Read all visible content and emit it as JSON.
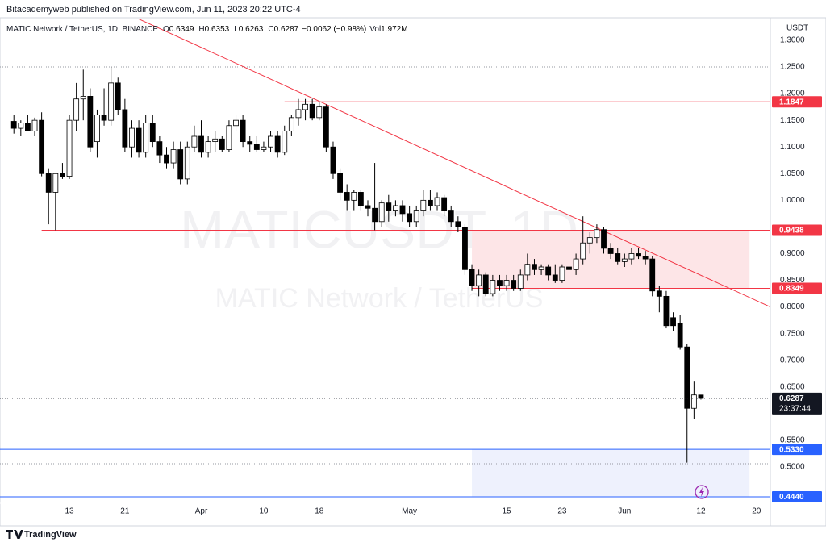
{
  "header": "Bitacademyweb published on TradingView.com, Jun 11, 2023 20:22 UTC-4",
  "footer": "TradingView",
  "chart_data": {
    "type": "candlestick",
    "title": "MATIC Network / TetherUS, 1D, BINANCE",
    "watermark": [
      "MATICUSDT, 1D",
      "MATIC Network / TetherUS"
    ],
    "legend_labels": [
      "O",
      "H",
      "L",
      "C"
    ],
    "change": "−0.0062 (−0.98%)",
    "volume_label": "Vol",
    "volume": "1.972M",
    "y_unit": "USDT",
    "x": [
      "2023-03-05",
      "2023-03-06",
      "2023-03-07",
      "2023-03-08",
      "2023-03-09",
      "2023-03-10",
      "2023-03-11",
      "2023-03-12",
      "2023-03-13",
      "2023-03-14",
      "2023-03-15",
      "2023-03-16",
      "2023-03-17",
      "2023-03-18",
      "2023-03-19",
      "2023-03-20",
      "2023-03-21",
      "2023-03-22",
      "2023-03-23",
      "2023-03-24",
      "2023-03-25",
      "2023-03-26",
      "2023-03-27",
      "2023-03-28",
      "2023-03-29",
      "2023-03-30",
      "2023-03-31",
      "2023-04-01",
      "2023-04-02",
      "2023-04-03",
      "2023-04-04",
      "2023-04-05",
      "2023-04-06",
      "2023-04-07",
      "2023-04-08",
      "2023-04-09",
      "2023-04-10",
      "2023-04-11",
      "2023-04-12",
      "2023-04-13",
      "2023-04-14",
      "2023-04-15",
      "2023-04-16",
      "2023-04-17",
      "2023-04-18",
      "2023-04-19",
      "2023-04-20",
      "2023-04-21",
      "2023-04-22",
      "2023-04-23",
      "2023-04-24",
      "2023-04-25",
      "2023-04-26",
      "2023-04-27",
      "2023-04-28",
      "2023-04-29",
      "2023-04-30",
      "2023-05-01",
      "2023-05-02",
      "2023-05-03",
      "2023-05-04",
      "2023-05-05",
      "2023-05-06",
      "2023-05-07",
      "2023-05-08",
      "2023-05-09",
      "2023-05-10",
      "2023-05-11",
      "2023-05-12",
      "2023-05-13",
      "2023-05-14",
      "2023-05-15",
      "2023-05-16",
      "2023-05-17",
      "2023-05-18",
      "2023-05-19",
      "2023-05-20",
      "2023-05-21",
      "2023-05-22",
      "2023-05-23",
      "2023-05-24",
      "2023-05-25",
      "2023-05-26",
      "2023-05-27",
      "2023-05-28",
      "2023-05-29",
      "2023-05-30",
      "2023-05-31",
      "2023-06-01",
      "2023-06-02",
      "2023-06-03",
      "2023-06-04",
      "2023-06-05",
      "2023-06-06",
      "2023-06-07",
      "2023-06-08",
      "2023-06-09",
      "2023-06-10",
      "2023-06-11",
      "2023-06-12"
    ],
    "open": [
      1.148,
      1.135,
      1.145,
      1.13,
      1.15,
      1.05,
      1.015,
      1.05,
      1.045,
      1.15,
      1.19,
      1.195,
      1.11,
      1.16,
      1.15,
      1.22,
      1.17,
      1.1,
      1.135,
      1.09,
      1.145,
      1.11,
      1.085,
      1.07,
      1.095,
      1.04,
      1.1,
      1.12,
      1.09,
      1.11,
      1.115,
      1.095,
      1.14,
      1.15,
      1.11,
      1.105,
      1.095,
      1.1,
      1.12,
      1.09,
      1.13,
      1.155,
      1.17,
      1.18,
      1.155,
      1.175,
      1.1,
      1.05,
      1.015,
      1.0,
      1.015,
      0.99,
      0.985,
      0.96,
      0.995,
      0.98,
      0.99,
      0.975,
      0.96,
      0.98,
      1.0,
      0.99,
      1.005,
      0.98,
      0.96,
      0.95,
      0.87,
      0.84,
      0.86,
      0.825,
      0.85,
      0.84,
      0.85,
      0.835,
      0.86,
      0.88,
      0.87,
      0.875,
      0.86,
      0.85,
      0.875,
      0.87,
      0.89,
      0.92,
      0.93,
      0.945,
      0.91,
      0.9,
      0.885,
      0.89,
      0.9,
      0.895,
      0.89,
      0.83,
      0.82,
      0.78,
      0.77,
      0.725,
      0.61,
      0.6349
    ],
    "high": [
      1.16,
      1.15,
      1.16,
      1.155,
      1.165,
      1.06,
      1.05,
      1.07,
      1.16,
      1.22,
      1.245,
      1.21,
      1.17,
      1.21,
      1.25,
      1.23,
      1.19,
      1.15,
      1.15,
      1.16,
      1.16,
      1.12,
      1.1,
      1.11,
      1.11,
      1.11,
      1.14,
      1.15,
      1.12,
      1.13,
      1.12,
      1.15,
      1.16,
      1.16,
      1.12,
      1.12,
      1.11,
      1.13,
      1.13,
      1.14,
      1.16,
      1.19,
      1.19,
      1.19,
      1.185,
      1.18,
      1.11,
      1.06,
      1.03,
      1.02,
      1.02,
      1.0,
      1.07,
      1.0,
      1.01,
      1.0,
      1.0,
      0.99,
      0.99,
      1.02,
      1.02,
      1.015,
      1.01,
      0.99,
      0.97,
      0.955,
      0.88,
      0.87,
      0.865,
      0.86,
      0.86,
      0.86,
      0.86,
      0.87,
      0.9,
      0.89,
      0.88,
      0.88,
      0.88,
      0.88,
      0.885,
      0.9,
      0.97,
      0.94,
      0.955,
      0.95,
      0.92,
      0.91,
      0.9,
      0.91,
      0.91,
      0.905,
      0.895,
      0.84,
      0.83,
      0.79,
      0.785,
      0.73,
      0.66,
      0.6353
    ],
    "low": [
      1.125,
      1.12,
      1.13,
      1.12,
      1.045,
      0.955,
      0.944,
      1.04,
      1.04,
      1.13,
      1.15,
      1.09,
      1.08,
      1.14,
      1.14,
      1.16,
      1.09,
      1.08,
      1.08,
      1.08,
      1.1,
      1.07,
      1.06,
      1.06,
      1.03,
      1.03,
      1.09,
      1.08,
      1.08,
      1.09,
      1.09,
      1.09,
      1.13,
      1.1,
      1.09,
      1.09,
      1.09,
      1.09,
      1.08,
      1.085,
      1.12,
      1.14,
      1.15,
      1.15,
      1.15,
      1.09,
      1.04,
      1.0,
      0.98,
      0.98,
      0.98,
      0.97,
      0.944,
      0.95,
      0.96,
      0.97,
      0.96,
      0.95,
      0.95,
      0.97,
      0.98,
      0.98,
      0.97,
      0.95,
      0.94,
      0.86,
      0.83,
      0.82,
      0.82,
      0.82,
      0.83,
      0.83,
      0.83,
      0.83,
      0.85,
      0.86,
      0.86,
      0.85,
      0.845,
      0.845,
      0.86,
      0.86,
      0.88,
      0.9,
      0.92,
      0.9,
      0.89,
      0.88,
      0.875,
      0.88,
      0.89,
      0.88,
      0.82,
      0.79,
      0.76,
      0.755,
      0.72,
      0.508,
      0.59,
      0.6263
    ],
    "close": [
      1.135,
      1.145,
      1.13,
      1.15,
      1.05,
      1.015,
      1.05,
      1.045,
      1.15,
      1.19,
      1.195,
      1.1,
      1.16,
      1.15,
      1.22,
      1.17,
      1.1,
      1.135,
      1.09,
      1.145,
      1.11,
      1.085,
      1.07,
      1.095,
      1.04,
      1.1,
      1.12,
      1.09,
      1.11,
      1.115,
      1.095,
      1.14,
      1.15,
      1.11,
      1.105,
      1.095,
      1.1,
      1.12,
      1.09,
      1.13,
      1.155,
      1.17,
      1.18,
      1.155,
      1.175,
      1.1,
      1.05,
      1.015,
      1.0,
      1.015,
      0.99,
      0.985,
      0.96,
      0.995,
      0.98,
      0.99,
      0.975,
      0.96,
      0.98,
      1.0,
      0.99,
      1.005,
      0.98,
      0.96,
      0.95,
      0.87,
      0.84,
      0.86,
      0.825,
      0.85,
      0.84,
      0.85,
      0.835,
      0.86,
      0.88,
      0.87,
      0.875,
      0.86,
      0.85,
      0.875,
      0.87,
      0.89,
      0.92,
      0.93,
      0.945,
      0.91,
      0.9,
      0.885,
      0.89,
      0.9,
      0.895,
      0.89,
      0.83,
      0.82,
      0.765,
      0.765,
      0.725,
      0.61,
      0.635,
      0.6287
    ],
    "up_color": "#ffffff",
    "down_color": "#000000",
    "wick_color": "#000000",
    "xlim": [
      "2023-03-03",
      "2023-06-22"
    ],
    "xticks": [
      {
        "value": "2023-03-13",
        "label": "13"
      },
      {
        "value": "2023-03-21",
        "label": "21"
      },
      {
        "value": "2023-04-01",
        "label": "Apr"
      },
      {
        "value": "2023-04-10",
        "label": "10"
      },
      {
        "value": "2023-04-18",
        "label": "18"
      },
      {
        "value": "2023-05-01",
        "label": "May"
      },
      {
        "value": "2023-05-15",
        "label": "15"
      },
      {
        "value": "2023-05-23",
        "label": "23"
      },
      {
        "value": "2023-06-01",
        "label": "Jun"
      },
      {
        "value": "2023-06-12",
        "label": "12"
      },
      {
        "value": "2023-06-20",
        "label": "20"
      }
    ],
    "ylim": [
      0.4183,
      1.3423
    ],
    "yticks": [
      {
        "value": 0.5,
        "label": "0.5000"
      },
      {
        "value": 0.55,
        "label": "0.5500"
      },
      {
        "value": 0.65,
        "label": "0.6500"
      },
      {
        "value": 0.7,
        "label": "0.7000"
      },
      {
        "value": 0.75,
        "label": "0.7500"
      },
      {
        "value": 0.8,
        "label": "0.8000"
      },
      {
        "value": 0.85,
        "label": "0.8500"
      },
      {
        "value": 0.9,
        "label": "0.9000"
      },
      {
        "value": 1.0,
        "label": "1.0000"
      },
      {
        "value": 1.05,
        "label": "1.0500"
      },
      {
        "value": 1.1,
        "label": "1.1000"
      },
      {
        "value": 1.15,
        "label": "1.1500"
      },
      {
        "value": 1.2,
        "label": "1.2000"
      },
      {
        "value": 1.25,
        "label": "1.2500"
      },
      {
        "value": 1.3,
        "label": "1.3000"
      }
    ],
    "grid": false,
    "levels": [
      {
        "value": 1.1847,
        "color": "#f23645",
        "from": "2023-04-13"
      },
      {
        "value": 0.9438,
        "color": "#f23645",
        "from": "2023-03-09"
      },
      {
        "value": 0.8349,
        "color": "#f23645",
        "from": "2023-05-10"
      },
      {
        "value": 0.533,
        "label": "0.5330",
        "color": "#2962ff"
      },
      {
        "value": 0.444,
        "label": "0.4440",
        "color": "#2962ff"
      }
    ],
    "dotted_levels": [
      1.25,
      0.506
    ],
    "zones": [
      {
        "from": "2023-05-10",
        "to": "2023-06-19",
        "low": 0.8349,
        "high": 0.9438,
        "color": "#fde5e7"
      },
      {
        "from": "2023-05-10",
        "to": "2023-06-19",
        "low": 0.444,
        "high": 0.533,
        "color": "#eef1fd"
      }
    ],
    "trendline": {
      "x": [
        "2023-03-23",
        "2023-06-22"
      ],
      "y": [
        1.34,
        0.8
      ],
      "color": "#f23645"
    },
    "last_price_countdown": "23:37:44"
  }
}
